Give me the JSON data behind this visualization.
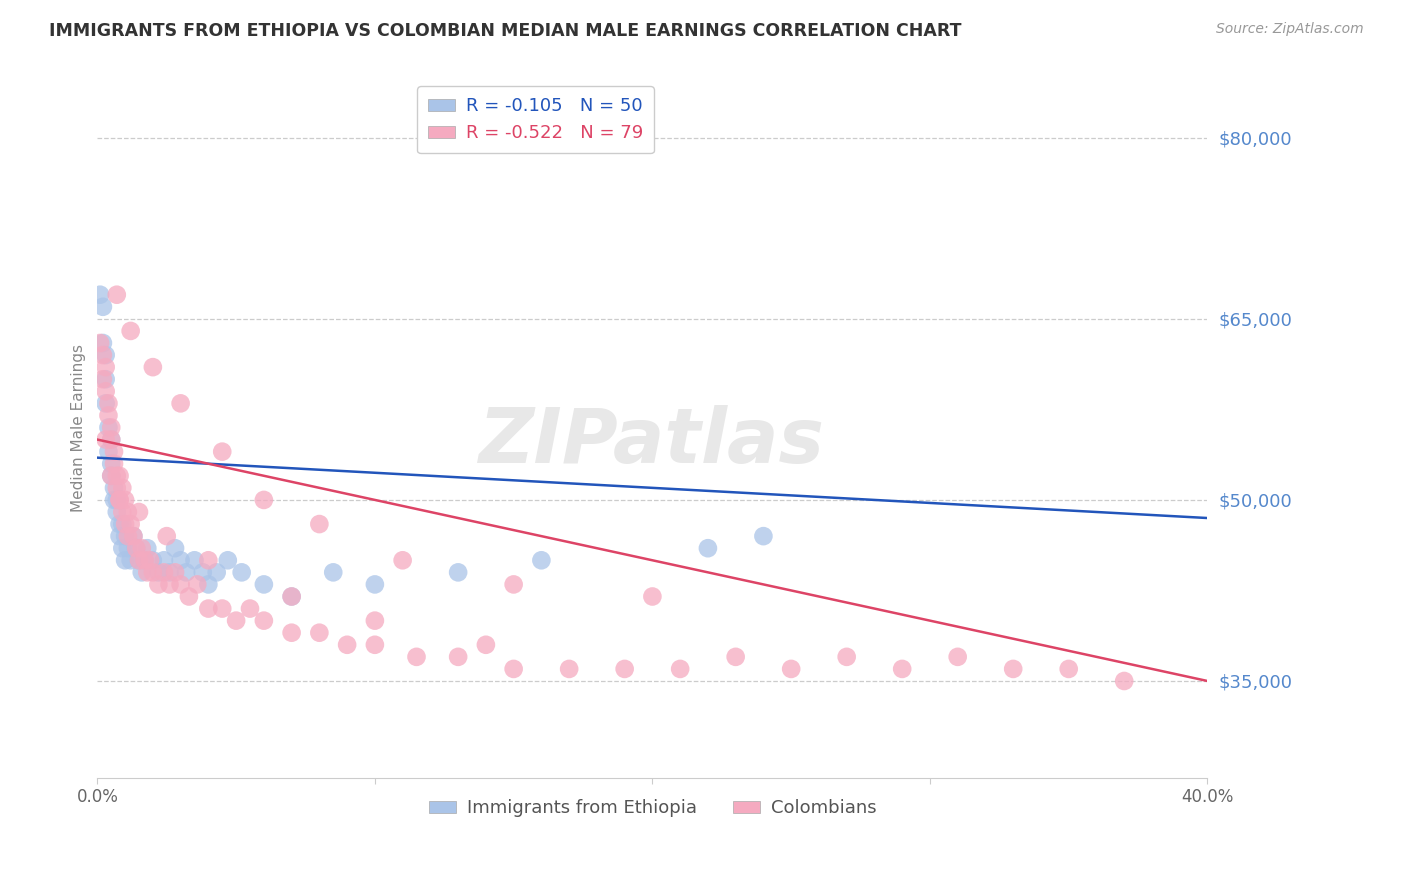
{
  "title": "IMMIGRANTS FROM ETHIOPIA VS COLOMBIAN MEDIAN MALE EARNINGS CORRELATION CHART",
  "source": "Source: ZipAtlas.com",
  "ylabel": "Median Male Earnings",
  "y_ticks": [
    35000,
    50000,
    65000,
    80000
  ],
  "y_tick_labels": [
    "$35,000",
    "$50,000",
    "$65,000",
    "$80,000"
  ],
  "xlim": [
    0.0,
    0.4
  ],
  "ylim": [
    27000,
    85000
  ],
  "ethiopia_color": "#aac4e8",
  "colombian_color": "#f5aac0",
  "ethiopia_line_color": "#2255bb",
  "colombian_line_color": "#dd4466",
  "watermark": "ZIPatlas",
  "ethiopia_R": -0.105,
  "ethiopia_N": 50,
  "colombian_R": -0.522,
  "colombian_N": 79,
  "ethiopia_scatter_x": [
    0.001,
    0.002,
    0.002,
    0.003,
    0.003,
    0.003,
    0.004,
    0.004,
    0.005,
    0.005,
    0.005,
    0.006,
    0.006,
    0.007,
    0.007,
    0.008,
    0.008,
    0.009,
    0.009,
    0.01,
    0.01,
    0.011,
    0.012,
    0.013,
    0.014,
    0.015,
    0.016,
    0.017,
    0.018,
    0.02,
    0.022,
    0.024,
    0.026,
    0.028,
    0.03,
    0.032,
    0.035,
    0.038,
    0.04,
    0.043,
    0.047,
    0.052,
    0.06,
    0.07,
    0.085,
    0.1,
    0.13,
    0.16,
    0.22,
    0.24
  ],
  "ethiopia_scatter_y": [
    67000,
    66000,
    63000,
    62000,
    60000,
    58000,
    56000,
    54000,
    55000,
    53000,
    52000,
    51000,
    50000,
    50000,
    49000,
    48000,
    47000,
    48000,
    46000,
    47000,
    45000,
    46000,
    45000,
    47000,
    46000,
    45000,
    44000,
    45000,
    46000,
    45000,
    44000,
    45000,
    44000,
    46000,
    45000,
    44000,
    45000,
    44000,
    43000,
    44000,
    45000,
    44000,
    43000,
    42000,
    44000,
    43000,
    44000,
    45000,
    46000,
    47000
  ],
  "colombian_scatter_x": [
    0.001,
    0.002,
    0.002,
    0.003,
    0.003,
    0.004,
    0.004,
    0.005,
    0.005,
    0.006,
    0.006,
    0.007,
    0.007,
    0.008,
    0.008,
    0.009,
    0.009,
    0.01,
    0.01,
    0.011,
    0.011,
    0.012,
    0.013,
    0.014,
    0.015,
    0.016,
    0.017,
    0.018,
    0.019,
    0.02,
    0.022,
    0.024,
    0.026,
    0.028,
    0.03,
    0.033,
    0.036,
    0.04,
    0.045,
    0.05,
    0.055,
    0.06,
    0.07,
    0.08,
    0.09,
    0.1,
    0.115,
    0.13,
    0.15,
    0.17,
    0.19,
    0.21,
    0.23,
    0.25,
    0.27,
    0.29,
    0.31,
    0.33,
    0.35,
    0.37,
    0.007,
    0.012,
    0.02,
    0.03,
    0.045,
    0.06,
    0.08,
    0.11,
    0.15,
    0.2,
    0.003,
    0.005,
    0.008,
    0.015,
    0.025,
    0.04,
    0.07,
    0.1,
    0.14
  ],
  "colombian_scatter_y": [
    63000,
    62000,
    60000,
    61000,
    59000,
    58000,
    57000,
    56000,
    55000,
    54000,
    53000,
    52000,
    51000,
    52000,
    50000,
    51000,
    49000,
    50000,
    48000,
    49000,
    47000,
    48000,
    47000,
    46000,
    45000,
    46000,
    45000,
    44000,
    45000,
    44000,
    43000,
    44000,
    43000,
    44000,
    43000,
    42000,
    43000,
    41000,
    41000,
    40000,
    41000,
    40000,
    39000,
    39000,
    38000,
    38000,
    37000,
    37000,
    36000,
    36000,
    36000,
    36000,
    37000,
    36000,
    37000,
    36000,
    37000,
    36000,
    36000,
    35000,
    67000,
    64000,
    61000,
    58000,
    54000,
    50000,
    48000,
    45000,
    43000,
    42000,
    55000,
    52000,
    50000,
    49000,
    47000,
    45000,
    42000,
    40000,
    38000
  ]
}
